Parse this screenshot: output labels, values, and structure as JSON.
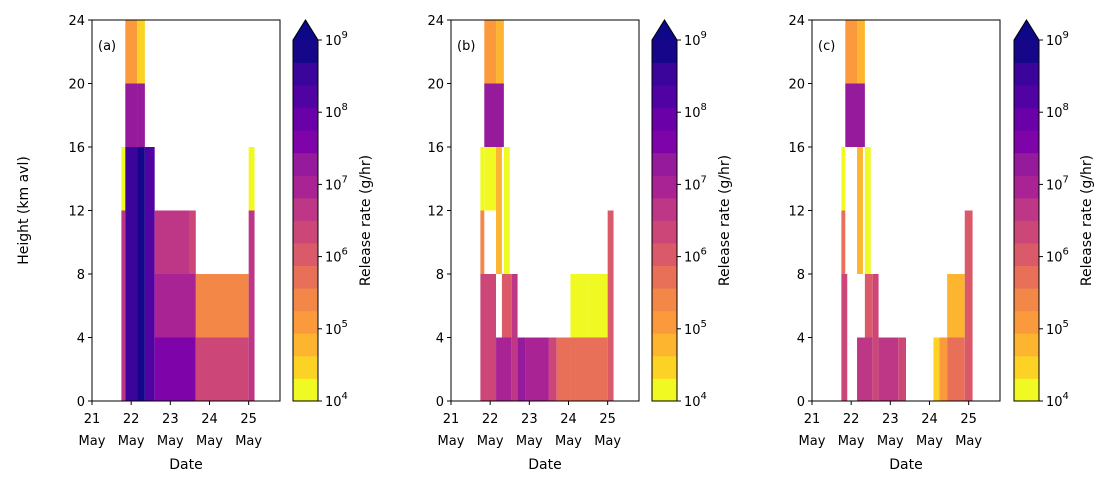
{
  "chart_data": [
    {
      "type": "heatmap",
      "panel_label": "(a)",
      "xlabel": "Date",
      "ylabel": "Height (km avl)",
      "colorbar_label": "Release rate (g/hr)",
      "cells": [
        {
          "x": [
            21.75,
            21.85
          ],
          "y": [
            12,
            16
          ],
          "v": 4.2
        },
        {
          "x": [
            21.75,
            21.85
          ],
          "y": [
            0,
            12
          ],
          "v": 6.6
        },
        {
          "x": [
            21.85,
            22.15
          ],
          "y": [
            20,
            24
          ],
          "v": 5.0
        },
        {
          "x": [
            22.15,
            22.35
          ],
          "y": [
            20,
            24
          ],
          "v": 4.6
        },
        {
          "x": [
            21.85,
            22.15
          ],
          "y": [
            16,
            20
          ],
          "v": 7.4
        },
        {
          "x": [
            22.15,
            22.35
          ],
          "y": [
            16,
            20
          ],
          "v": 7.4
        },
        {
          "x": [
            21.85,
            22.15
          ],
          "y": [
            0,
            16
          ],
          "v": 8.4
        },
        {
          "x": [
            22.15,
            22.35
          ],
          "y": [
            0,
            16
          ],
          "v": 8.7
        },
        {
          "x": [
            22.35,
            22.6
          ],
          "y": [
            0,
            16
          ],
          "v": 8.3
        },
        {
          "x": [
            22.6,
            23.5
          ],
          "y": [
            8,
            12
          ],
          "v": 6.6
        },
        {
          "x": [
            23.5,
            23.65
          ],
          "y": [
            4,
            12
          ],
          "v": 6.3
        },
        {
          "x": [
            22.6,
            23.65
          ],
          "y": [
            4,
            8
          ],
          "v": 7.1
        },
        {
          "x": [
            22.6,
            23.65
          ],
          "y": [
            0,
            4
          ],
          "v": 7.6
        },
        {
          "x": [
            23.65,
            25.0
          ],
          "y": [
            4,
            8
          ],
          "v": 5.4
        },
        {
          "x": [
            23.65,
            25.0
          ],
          "y": [
            0,
            4
          ],
          "v": 6.3
        },
        {
          "x": [
            25.0,
            25.15
          ],
          "y": [
            12,
            16
          ],
          "v": 4.2
        },
        {
          "x": [
            25.0,
            25.15
          ],
          "y": [
            0,
            12
          ],
          "v": 6.8
        }
      ]
    },
    {
      "type": "heatmap",
      "panel_label": "(b)",
      "xlabel": "Date",
      "ylabel": "",
      "colorbar_label": "Release rate (g/hr)",
      "cells": [
        {
          "x": [
            21.75,
            21.85
          ],
          "y": [
            8,
            12
          ],
          "v": 5.4
        },
        {
          "x": [
            21.75,
            21.85
          ],
          "y": [
            12,
            16
          ],
          "v": 4.3
        },
        {
          "x": [
            21.75,
            22.15
          ],
          "y": [
            0,
            8
          ],
          "v": 6.2
        },
        {
          "x": [
            21.85,
            22.15
          ],
          "y": [
            20,
            24
          ],
          "v": 5.0
        },
        {
          "x": [
            21.85,
            22.15
          ],
          "y": [
            12,
            16
          ],
          "v": 4.2
        },
        {
          "x": [
            22.15,
            22.35
          ],
          "y": [
            20,
            24
          ],
          "v": 4.7
        },
        {
          "x": [
            21.85,
            22.35
          ],
          "y": [
            16,
            20
          ],
          "v": 7.4
        },
        {
          "x": [
            22.15,
            22.3
          ],
          "y": [
            8,
            16
          ],
          "v": 4.7
        },
        {
          "x": [
            22.35,
            22.5
          ],
          "y": [
            8,
            16
          ],
          "v": 4.3
        },
        {
          "x": [
            22.15,
            22.55
          ],
          "y": [
            0,
            4
          ],
          "v": 7.0
        },
        {
          "x": [
            22.3,
            22.55
          ],
          "y": [
            4,
            8
          ],
          "v": 6.0
        },
        {
          "x": [
            22.55,
            22.7
          ],
          "y": [
            0,
            8
          ],
          "v": 6.6
        },
        {
          "x": [
            22.7,
            22.9
          ],
          "y": [
            0,
            4
          ],
          "v": 7.4
        },
        {
          "x": [
            22.9,
            23.5
          ],
          "y": [
            0,
            4
          ],
          "v": 6.9
        },
        {
          "x": [
            23.5,
            23.7
          ],
          "y": [
            0,
            4
          ],
          "v": 6.4
        },
        {
          "x": [
            23.7,
            24.05
          ],
          "y": [
            0,
            4
          ],
          "v": 5.6
        },
        {
          "x": [
            24.05,
            25.0
          ],
          "y": [
            0,
            4
          ],
          "v": 5.8
        },
        {
          "x": [
            24.05,
            24.5
          ],
          "y": [
            4,
            8
          ],
          "v": 4.2
        },
        {
          "x": [
            24.5,
            25.0
          ],
          "y": [
            4,
            8
          ],
          "v": 4.1
        },
        {
          "x": [
            25.0,
            25.15
          ],
          "y": [
            0,
            12
          ],
          "v": 6.1
        }
      ]
    },
    {
      "type": "heatmap",
      "panel_label": "(c)",
      "xlabel": "Date",
      "ylabel": "",
      "colorbar_label": "Release rate (g/hr)",
      "cells": [
        {
          "x": [
            21.75,
            21.85
          ],
          "y": [
            12,
            16
          ],
          "v": 4.2
        },
        {
          "x": [
            21.75,
            21.85
          ],
          "y": [
            8,
            12
          ],
          "v": 5.6
        },
        {
          "x": [
            21.75,
            21.9
          ],
          "y": [
            0,
            8
          ],
          "v": 6.3
        },
        {
          "x": [
            21.85,
            22.15
          ],
          "y": [
            20,
            24
          ],
          "v": 5.0
        },
        {
          "x": [
            22.15,
            22.35
          ],
          "y": [
            20,
            24
          ],
          "v": 4.7
        },
        {
          "x": [
            21.85,
            22.35
          ],
          "y": [
            16,
            20
          ],
          "v": 7.4
        },
        {
          "x": [
            22.15,
            22.3
          ],
          "y": [
            8,
            16
          ],
          "v": 4.7
        },
        {
          "x": [
            22.35,
            22.5
          ],
          "y": [
            8,
            16
          ],
          "v": 4.3
        },
        {
          "x": [
            22.15,
            22.55
          ],
          "y": [
            0,
            4
          ],
          "v": 6.7
        },
        {
          "x": [
            22.35,
            22.55
          ],
          "y": [
            4,
            8
          ],
          "v": 6.1
        },
        {
          "x": [
            22.55,
            22.7
          ],
          "y": [
            0,
            8
          ],
          "v": 6.4
        },
        {
          "x": [
            22.7,
            23.2
          ],
          "y": [
            0,
            4
          ],
          "v": 6.6
        },
        {
          "x": [
            23.2,
            23.4
          ],
          "y": [
            0,
            4
          ],
          "v": 6.3
        },
        {
          "x": [
            24.1,
            24.25
          ],
          "y": [
            0,
            4
          ],
          "v": 4.6
        },
        {
          "x": [
            24.25,
            24.45
          ],
          "y": [
            0,
            4
          ],
          "v": 5.2
        },
        {
          "x": [
            24.45,
            24.9
          ],
          "y": [
            0,
            4
          ],
          "v": 5.8
        },
        {
          "x": [
            24.45,
            24.9
          ],
          "y": [
            4,
            8
          ],
          "v": 4.8
        },
        {
          "x": [
            24.9,
            25.1
          ],
          "y": [
            0,
            12
          ],
          "v": 6.1
        }
      ]
    }
  ],
  "shared": {
    "x_range": [
      21,
      25.8
    ],
    "y_range": [
      0,
      24
    ],
    "x_ticks": [
      {
        "value": 21,
        "day": "21",
        "month": "May"
      },
      {
        "value": 22,
        "day": "22",
        "month": "May"
      },
      {
        "value": 23,
        "day": "23",
        "month": "May"
      },
      {
        "value": 24,
        "day": "24",
        "month": "May"
      },
      {
        "value": 25,
        "day": "25",
        "month": "May"
      }
    ],
    "y_ticks": [
      0,
      4,
      8,
      12,
      16,
      20,
      24
    ],
    "colorbar": {
      "scale": "log",
      "range_exponents": [
        4,
        9
      ],
      "levels": 16,
      "extend": "max",
      "tick_exponents": [
        4,
        5,
        6,
        7,
        8,
        9
      ],
      "tick_base": "10",
      "colormap": "plasma_r"
    }
  }
}
